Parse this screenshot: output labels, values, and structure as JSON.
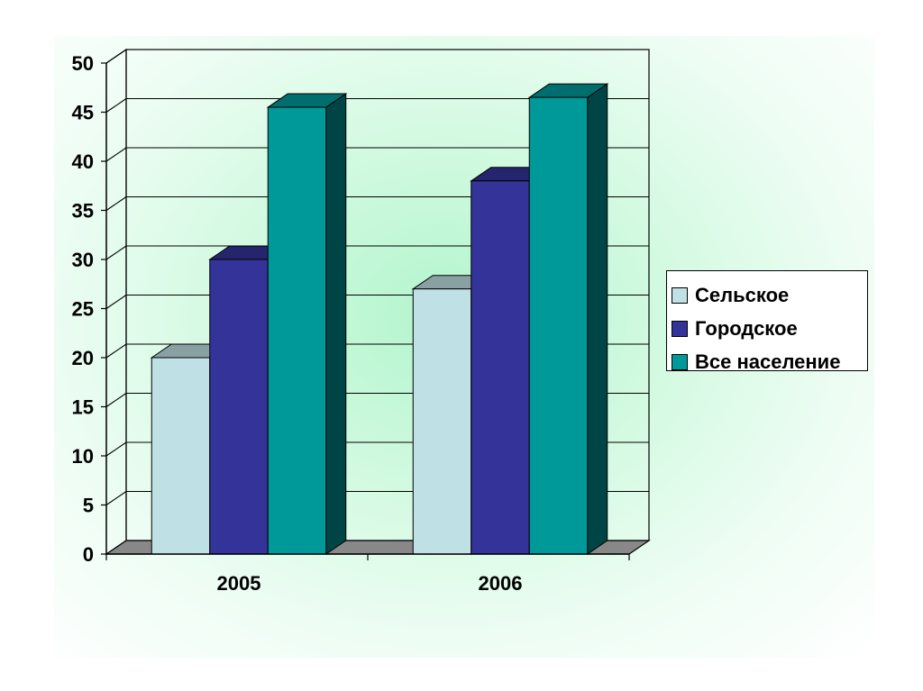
{
  "chart_data": {
    "type": "bar",
    "categories": [
      "2005",
      "2006"
    ],
    "series": [
      {
        "name": "Сельское",
        "values": [
          20,
          27
        ],
        "color": "#bfe0e4"
      },
      {
        "name": "Городское",
        "values": [
          30,
          38
        ],
        "color": "#333399"
      },
      {
        "name": "Все население",
        "values": [
          45.5,
          46.5
        ],
        "color": "#009999"
      }
    ],
    "y_ticks": [
      "0",
      "5",
      "10",
      "15",
      "20",
      "25",
      "30",
      "35",
      "40",
      "45",
      "50"
    ],
    "ylim": [
      0,
      50
    ],
    "grid": true,
    "legend_position": "right",
    "style": "3d-clustered-column"
  }
}
